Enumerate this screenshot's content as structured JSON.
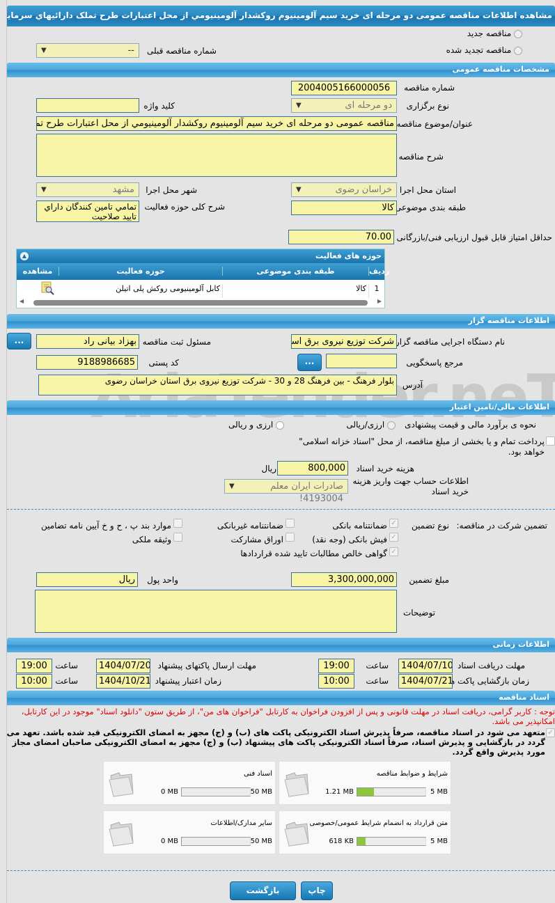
{
  "title": "مشاهده اطلاعات مناقصه عمومی دو مرحله ای خرید سیم آلومینیوم روکشدار آلومینیومي از محل اعتبارات طرح تملک دارائیهاي سرمایه اي",
  "radios": {
    "new": "مناقصه جدید",
    "renewed": "مناقصه تجدید شده"
  },
  "prev_tender": {
    "label": "شماره مناقصه قبلی",
    "value": "--"
  },
  "general": {
    "header": "مشخصات مناقصه عمومی",
    "number_label": "شماره مناقصه",
    "number": "2004005166000056",
    "type_label": "نوع برگزاری",
    "type": "دو مرحله ای",
    "keyword_label": "کلید واژه",
    "keyword": "",
    "subject_label": "عنوان/موضوع مناقصه",
    "subject": "مناقصه عمومی دو مرحله ای خرید  سیم آلومینیوم روکشدار آلومینیومي از محل اعتبارات طرح تملک دارائیهاي سرمایه اي",
    "desc_label": "شرح مناقصه",
    "desc": "",
    "province_label": "استان محل اجرا",
    "province": "خراسان رضوی",
    "city_label": "شهر محل اجرا",
    "city": "مشهد",
    "category_label": "طبقه بندی موضوعی",
    "category": "کالا",
    "activity_desc_label": "شرح کلی حوزه فعالیت",
    "activity_desc": "تمامي تامين كنندگان داراي تاييد صلاحيت",
    "min_score_label": "حداقل امتیاز قابل قبول ارزیابی فنی/بازرگانی",
    "min_score": "70.00"
  },
  "activity_table": {
    "title": "حوزه های فعالیت",
    "columns": [
      "ردیف",
      "طبقه بندی موضوعی",
      "حوزه فعالیت",
      "مشاهده"
    ],
    "rows": [
      {
        "index": "1",
        "category": "کالا",
        "activity": "کابل آلومینیومی روکش پلی اتیلن"
      }
    ]
  },
  "organizer": {
    "header": "اطلاعات مناقصه گزار",
    "org_label": "نام دستگاه اجرایی مناقصه گزار",
    "org": "شرکت توزیع نیروی برق استان خراسان رضوی",
    "responsible_label": "مسئول ثبت مناقصه",
    "responsible": "بهزاد بیانی راد",
    "ref_label": "مرجع پاسخگویی",
    "ref": "",
    "postal_label": "کد پستی",
    "postal": "9188986685",
    "address_label": "آدرس",
    "address": "بلوار فرهنگ - بین فرهنگ 28 و 30 - شرکت توزیع نیروی برق استان خراسان رضوی",
    "more_button": "..."
  },
  "finance": {
    "header": "اطلاعات مالی/تامین اعتبار",
    "method_label": "نحوه ی برآورد مالی و قیمت پیشنهادی",
    "opt1": "ارزی/ریالی",
    "opt2": "ارزی و ریالی",
    "treasury": "پرداخت تمام و یا بخشی از مبلغ مناقصه، از محل \"اسناد خزانه اسلامی\" خواهد بود.",
    "fee_label": "هزینه خرید اسناد",
    "fee": "800,000",
    "fee_unit": "ریال",
    "account_label": "اطلاعات حساب جهت واریز هزینه خرید اسناد",
    "account": "صادرات ایران معلم 4193004!"
  },
  "guarantee": {
    "label": "تضمین شرکت در مناقصه:",
    "type_label": "نوع تضمین",
    "options": [
      {
        "label": "ضمانتنامه بانکی",
        "checked": true
      },
      {
        "label": "ضمانتنامه غیربانکی",
        "checked": false
      },
      {
        "label": "موارد بند پ ، ح و خ آیین نامه تضامین",
        "checked": false
      },
      {
        "label": "فیش بانکی (وجه نقد)",
        "checked": true
      },
      {
        "label": "اوراق مشارکت",
        "checked": false
      },
      {
        "label": "وثیقه ملکی",
        "checked": false
      },
      {
        "label": "گواهی خالص مطالبات تایید شده قراردادها",
        "checked": true
      }
    ],
    "amount_label": "مبلغ تضمین",
    "amount": "3,300,000,000",
    "currency_label": "واحد پول",
    "currency": "ریال",
    "notes_label": "توضیحات",
    "notes": ""
  },
  "timing": {
    "header": "اطلاعات زمانی",
    "hour_label": "ساعت",
    "doc_deadline_label": "مهلت دریافت اسناد",
    "doc_deadline": "1404/07/10",
    "doc_deadline_time": "19:00",
    "submit_label": "مهلت ارسال پاکتهای پیشنهاد",
    "submit": "1404/07/20",
    "submit_time": "19:00",
    "open_label": "زمان بازگشایی پاکت ها",
    "open": "1404/07/21",
    "open_time": "10:00",
    "validity_label": "زمان اعتبار پیشنهاد",
    "validity": "1404/10/21",
    "validity_time": "10:00"
  },
  "docs": {
    "header": "اسناد مناقصه",
    "notice": "توجه : کاربر گرامی، دریافت اسناد در مهلت قانونی و پس از افزودن فراخوان به کارتابل \"فراخوان های من\"، از طریق ستون \"دانلود اسناد\" موجود در این کارتابل، امکانپذیر می باشد.",
    "commitment": "متعهد می شود در اسناد مناقصه، صرفاً پذیرش اسناد الکترونیکی پاکت های (ب) و (ج) مجهز به امضای الکترونیکی قید شده باشد. تعهد می گردد در بازگشایی و پذیرش اسناد، صرفاً اسناد الکترونیکی پاکت های پیشنهاد (ب) و (ج) مجهز به امضای الکترونیکی صاحبان امضای مجاز مورد پذیرش واقع گردد.",
    "files": [
      {
        "name": "شرایط و ضوابط مناقصه",
        "used": "1.21 MB",
        "max": "5 MB",
        "fraction": 0.24
      },
      {
        "name": "اسناد فنی",
        "used": "0 MB",
        "max": "50 MB",
        "fraction": 0
      },
      {
        "name": "متن قرارداد به انضمام شرایط عمومی/خصوصی",
        "used": "618 KB",
        "max": "5 MB",
        "fraction": 0.12
      },
      {
        "name": "سایر مدارک/اطلاعات",
        "used": "0 MB",
        "max": "50 MB",
        "fraction": 0
      }
    ]
  },
  "buttons": {
    "back": "بازگشت",
    "print": "چاپ"
  },
  "colors": {
    "accent": "#2f8fcb",
    "input_bg": "#f7f5a5",
    "notice": "#e00000",
    "progress": "#8cc63f"
  }
}
